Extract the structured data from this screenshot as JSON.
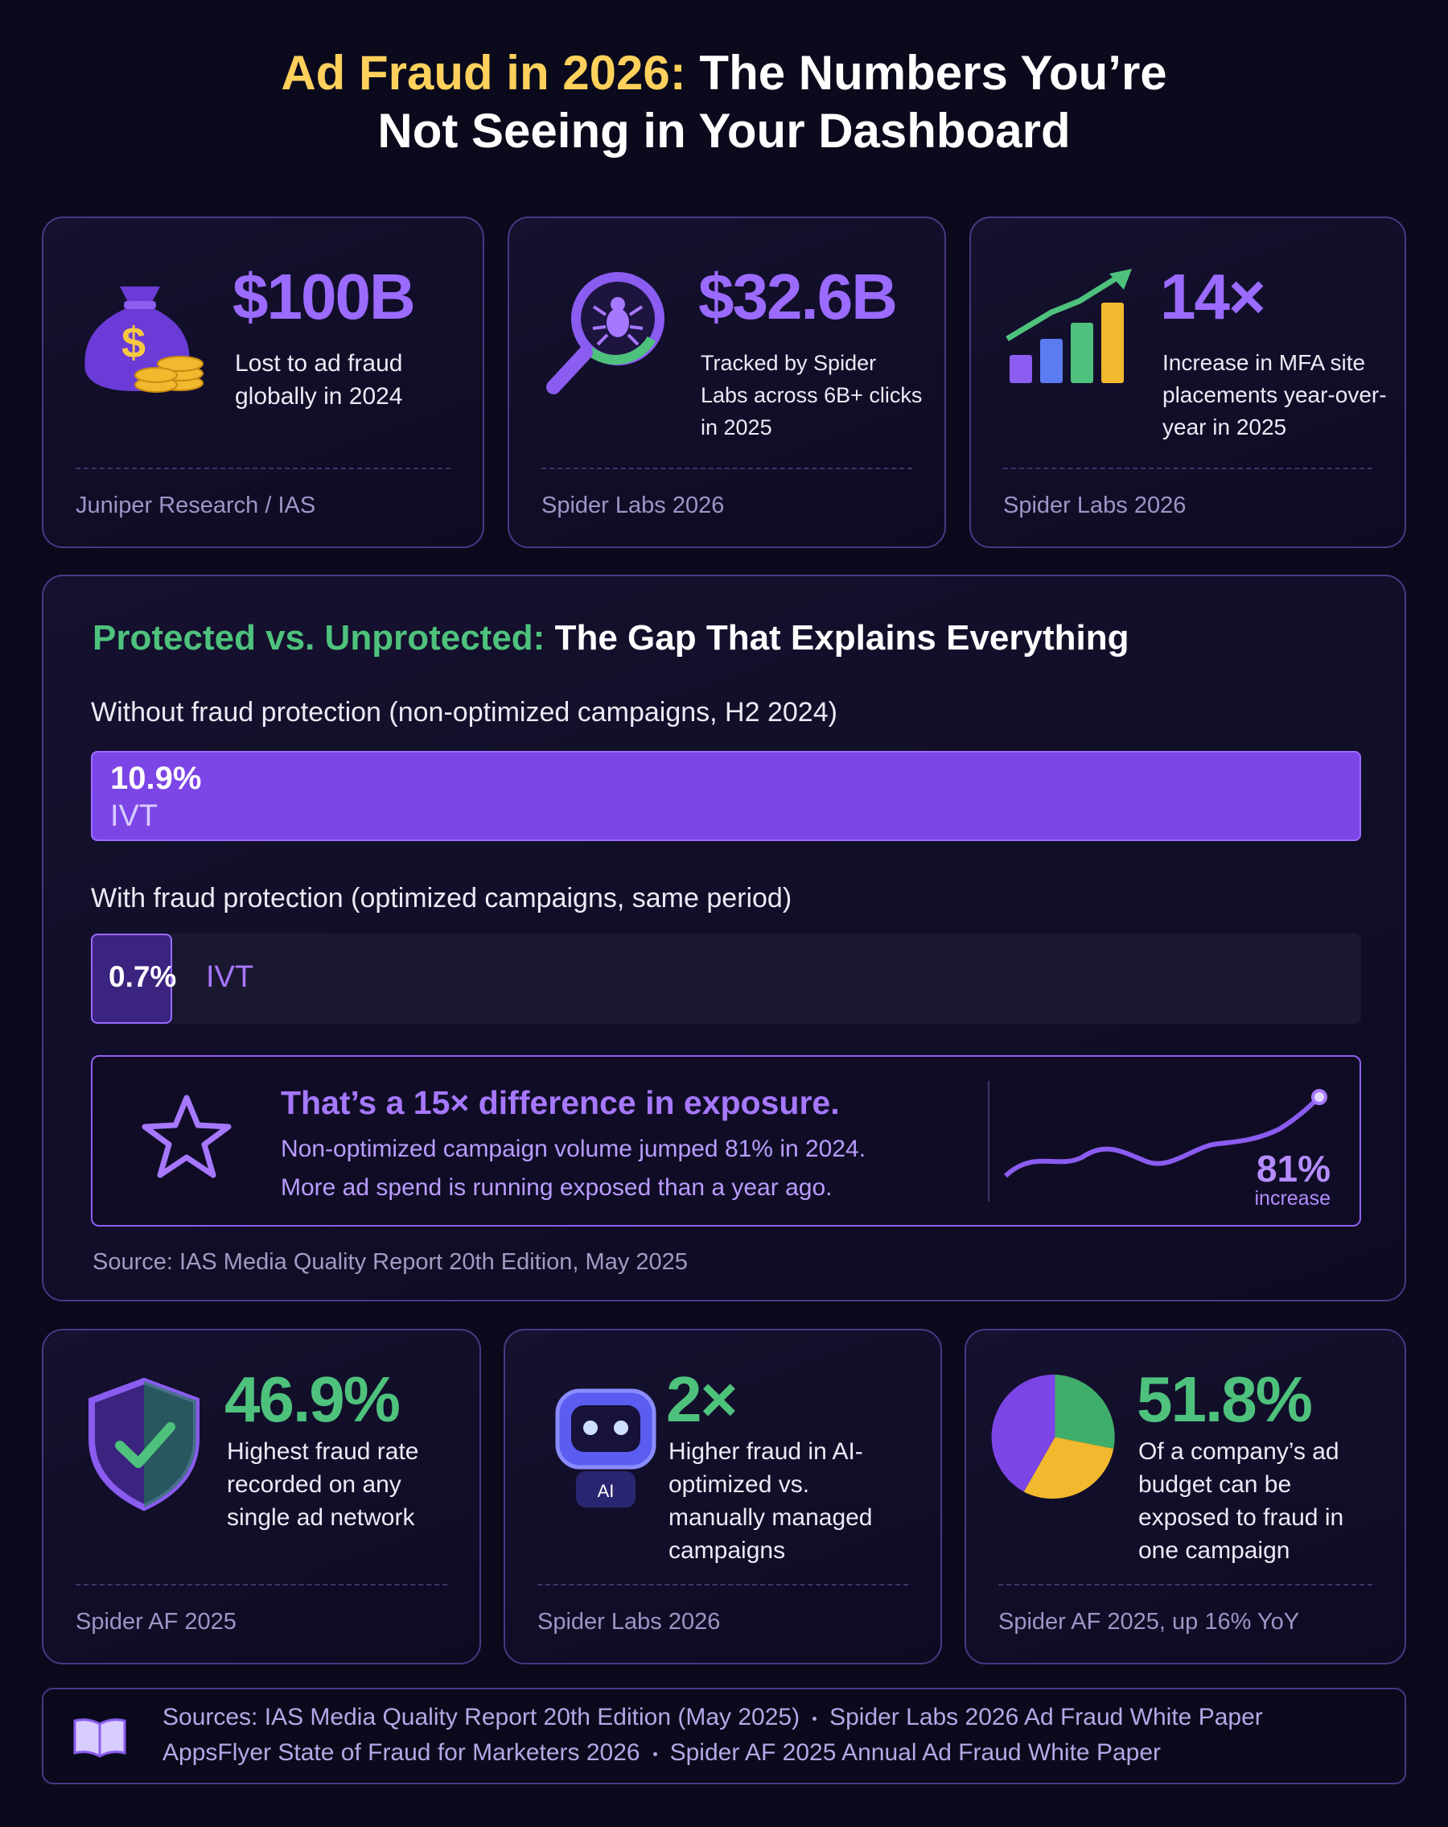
{
  "header": {
    "title_highlight": "Ad Fraud in 2026:",
    "title_rest": "The Numbers You’re Not Seeing in Your Dashboard"
  },
  "top_stats": [
    {
      "value": "$100B",
      "description": "Lost to ad fraud globally in 2024",
      "source": "Juniper Research / IAS"
    },
    {
      "value": "$32.6B",
      "description": "Tracked by Spider Labs across 6B+ clicks in 2025",
      "source": "Spider Labs 2026"
    },
    {
      "value": "14×",
      "description": "Increase in MFA site placements year-over-year in 2025",
      "source": "Spider Labs 2026"
    }
  ],
  "comparison": {
    "title_highlight": "Protected vs. Unprotected:",
    "title_rest": "The Gap That Explains Everything",
    "bars": [
      {
        "label": "Without fraud protection (non-optimized campaigns, H2 2024)",
        "value": 10.9,
        "value_label": "10.9%",
        "unit": "IVT"
      },
      {
        "label": "With fraud protection (optimized campaigns, same period)",
        "value": 0.7,
        "value_label": "0.7%",
        "unit": "IVT"
      }
    ],
    "callout": {
      "headline": "That’s a 15× difference in exposure.",
      "lines": [
        "Non-optimized campaign volume jumped 81% in 2024.",
        "More ad spend is running exposed than a year ago."
      ],
      "trend_value": "81%",
      "trend_label": "increase"
    },
    "source": "Source: IAS Media Quality Report 20th Edition, May 2025"
  },
  "bottom_stats": [
    {
      "value": "46.9%",
      "description": "Highest fraud rate recorded on any single ad network",
      "source": "Spider AF 2025"
    },
    {
      "value": "2×",
      "description": "Higher fraud in AI-optimized vs. manually managed campaigns",
      "source": "Spider Labs 2026"
    },
    {
      "value": "51.8%",
      "description": "Of a company’s ad budget can be exposed to fraud in one campaign",
      "source": "Spider AF 2025, up 16% YoY"
    }
  ],
  "sources": {
    "label": "Sources:",
    "items": [
      [
        "IAS Media Quality Report 20th Edition (May 2025)",
        "Spider Labs 2026 Ad Fraud White Paper"
      ],
      [
        "AppsFlyer State of Fraud for Marketers 2026",
        "Spider AF 2025 Annual Ad Fraud White Paper"
      ]
    ]
  }
}
